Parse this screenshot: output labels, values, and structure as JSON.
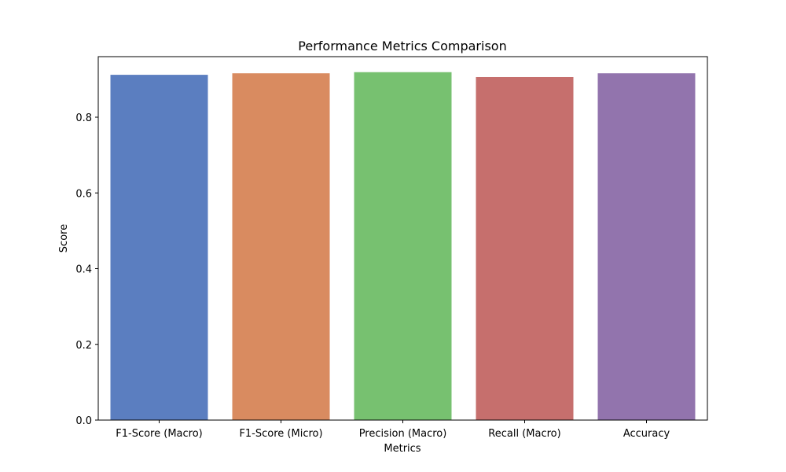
{
  "chart_data": {
    "type": "bar",
    "title": "Performance Metrics Comparison",
    "xlabel": "Metrics",
    "ylabel": "Score",
    "categories": [
      "F1-Score (Macro)",
      "F1-Score (Micro)",
      "Precision (Macro)",
      "Recall (Macro)",
      "Accuracy"
    ],
    "values": [
      0.912,
      0.916,
      0.919,
      0.906,
      0.916
    ],
    "colors": [
      "#5b7ec0",
      "#d98b60",
      "#77c170",
      "#c66f6d",
      "#9274ad"
    ],
    "ylim": [
      0,
      0.96
    ],
    "yticks": [
      "0.0",
      "0.2",
      "0.4",
      "0.6",
      "0.8"
    ],
    "ytick_values": [
      0,
      0.2,
      0.4,
      0.6,
      0.8
    ],
    "grid": false,
    "legend": "none"
  }
}
